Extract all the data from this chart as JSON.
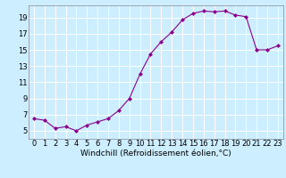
{
  "x": [
    0,
    1,
    2,
    3,
    4,
    5,
    6,
    7,
    8,
    9,
    10,
    11,
    12,
    13,
    14,
    15,
    16,
    17,
    18,
    19,
    20,
    21,
    22,
    23
  ],
  "y": [
    6.5,
    6.3,
    5.3,
    5.5,
    5.0,
    5.7,
    6.1,
    6.5,
    7.5,
    9.0,
    12.0,
    14.5,
    16.0,
    17.2,
    18.7,
    19.5,
    19.8,
    19.7,
    19.8,
    19.3,
    19.1,
    15.0,
    15.0,
    15.5
  ],
  "line_color": "#8B008B",
  "marker": "D",
  "marker_size": 2,
  "background_color": "#cceeff",
  "grid_color": "#ffffff",
  "xlabel": "Windchill (Refroidissement éolien,°C)",
  "xlim": [
    -0.5,
    23.5
  ],
  "ylim": [
    4.0,
    20.5
  ],
  "yticks": [
    5,
    7,
    9,
    11,
    13,
    15,
    17,
    19
  ],
  "xticks": [
    0,
    1,
    2,
    3,
    4,
    5,
    6,
    7,
    8,
    9,
    10,
    11,
    12,
    13,
    14,
    15,
    16,
    17,
    18,
    19,
    20,
    21,
    22,
    23
  ],
  "tick_fontsize": 6,
  "label_fontsize": 6.5
}
